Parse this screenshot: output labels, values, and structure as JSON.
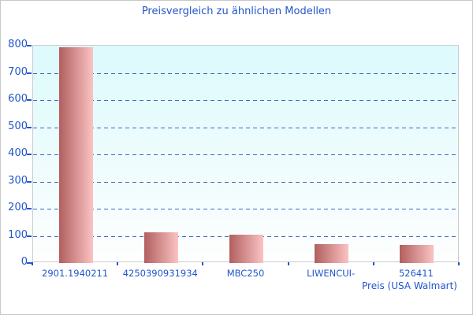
{
  "chart_data": {
    "type": "bar",
    "title": "Preisvergleich zu ähnlichen Modellen",
    "categories": [
      "2901.1940211",
      "4250390931934",
      "MBC250",
      "LIWENCUI-",
      "526411"
    ],
    "values": [
      795,
      112,
      103,
      71,
      67
    ],
    "xlabel": "Preis (USA Walmart)",
    "ylabel": "",
    "ylim": [
      0,
      800
    ],
    "yticks": [
      0,
      100,
      200,
      300,
      400,
      500,
      600,
      700,
      800
    ],
    "grid": true,
    "gridline_style": "dashed",
    "legend": false,
    "bar_color_gradient": [
      "#b25f5f",
      "#fbc3c3"
    ]
  },
  "colors": {
    "text_blue": "#2156cc",
    "grid_blue": "#3c6abf",
    "bar_dark": "#b25f5f",
    "bar_light": "#fbc3c3",
    "plot_bg_top": "#dcfafc",
    "plot_bg_bottom": "#fefefe",
    "plot_border": "#cccccc",
    "frame_border": "#c8c8c8",
    "page_bg": "#ffffff"
  }
}
